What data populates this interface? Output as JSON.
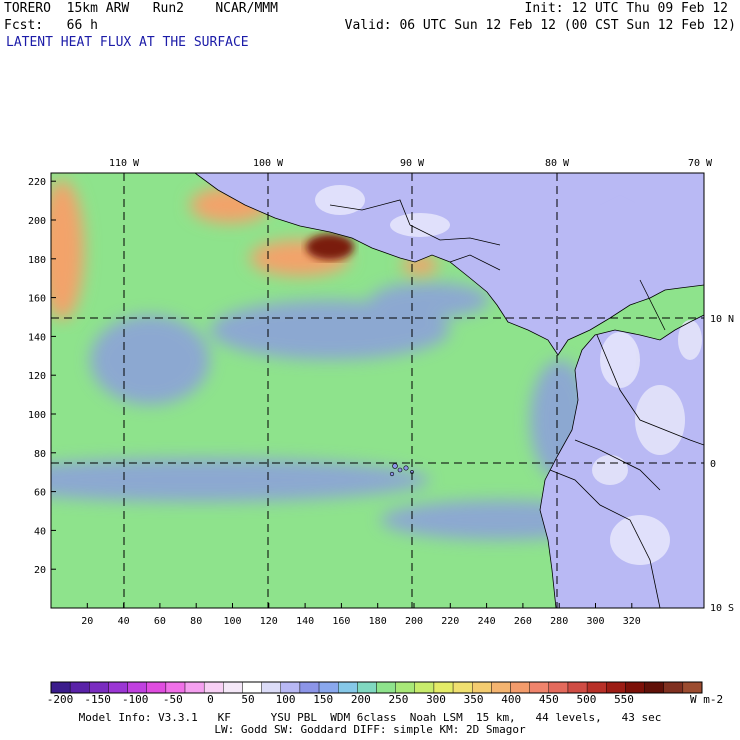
{
  "header": {
    "line1_left": "TORERO  15km ARW   Run2    NCAR/MMM",
    "line1_right": "Init: 12 UTC Thu 09 Feb 12",
    "line2_left": "Fcst:   66 h",
    "line2_right": "Valid: 06 UTC Sun 12 Feb 12 (00 CST Sun 12 Feb 12)",
    "field_title": "LATENT HEAT FLUX AT THE SURFACE"
  },
  "map": {
    "lon_labels": [
      "110 W",
      "100 W",
      "90 W",
      "80 W",
      "70 W"
    ],
    "lat_labels": [
      "10 N",
      "0",
      "10 S"
    ],
    "x_ticks": [
      "20",
      "40",
      "60",
      "80",
      "100",
      "120",
      "140",
      "160",
      "180",
      "200",
      "220",
      "240",
      "260",
      "280",
      "300",
      "320"
    ],
    "y_ticks": [
      "220",
      "200",
      "180",
      "160",
      "140",
      "120",
      "100",
      "80",
      "60",
      "40",
      "20"
    ],
    "colors": {
      "ocean_base": "#8ee38c",
      "ocean_low": "#8c95e8",
      "land": "#b9b9f4",
      "land_light": "#e6e6fb",
      "high_flux": "#f3a36b",
      "extreme_flux": "#7a1a0a",
      "grid": "#000000"
    }
  },
  "colorbar": {
    "labels": [
      "-200",
      "-150",
      "-100",
      "-50",
      "0",
      "50",
      "100",
      "150",
      "200",
      "250",
      "300",
      "350",
      "400",
      "450",
      "500",
      "550"
    ],
    "unit": "W m-2",
    "colors": [
      "#3b1c8c",
      "#5a22a8",
      "#7a2cc0",
      "#9b36d4",
      "#c040e0",
      "#e04ce0",
      "#f070e8",
      "#f5a0f0",
      "#f8d0f5",
      "#f5e8f8",
      "#ffffff",
      "#dcdcf8",
      "#b8b8f4",
      "#8c95e8",
      "#8aa8ee",
      "#86c8e8",
      "#80d8c0",
      "#8ee38c",
      "#a8e878",
      "#c8ec6c",
      "#e4ec68",
      "#f0e070",
      "#f4cc70",
      "#f4b470",
      "#f39c6c",
      "#f0846c",
      "#e46a5c",
      "#d04c44",
      "#b83028",
      "#9c1c14",
      "#7c1008",
      "#601008",
      "#803020",
      "#9c4c30"
    ]
  },
  "footer": {
    "line1": "Model Info: V3.3.1   KF      YSU PBL  WDM 6class  Noah LSM  15 km,   44 levels,   43 sec",
    "line2": "LW: Godd SW: Goddard DIFF: simple KM: 2D Smagor"
  }
}
